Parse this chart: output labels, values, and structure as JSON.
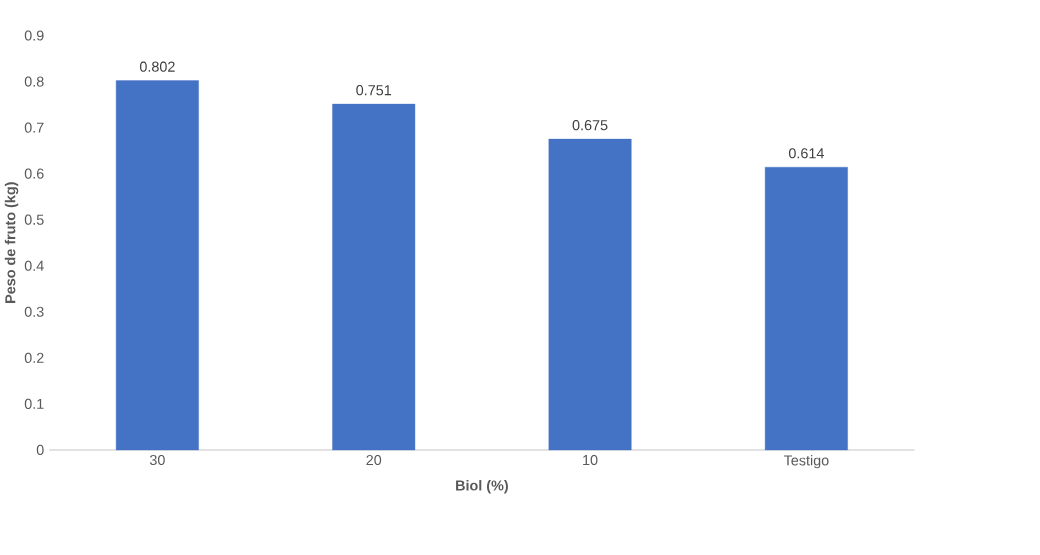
{
  "chart_data": {
    "type": "bar",
    "xlabel": "Biol (%)",
    "ylabel": "Peso de fruto (kg)",
    "categories": [
      "30",
      "20",
      "10",
      "Testigo"
    ],
    "values": [
      0.802,
      0.751,
      0.675,
      0.614
    ],
    "color": "#4472c4",
    "data_labels": true,
    "grid": false,
    "ylim": [
      0,
      0.9
    ],
    "yticks": [
      0,
      0.1,
      0.2,
      0.3,
      0.4,
      0.5,
      0.6,
      0.7,
      0.8,
      0.9
    ]
  }
}
